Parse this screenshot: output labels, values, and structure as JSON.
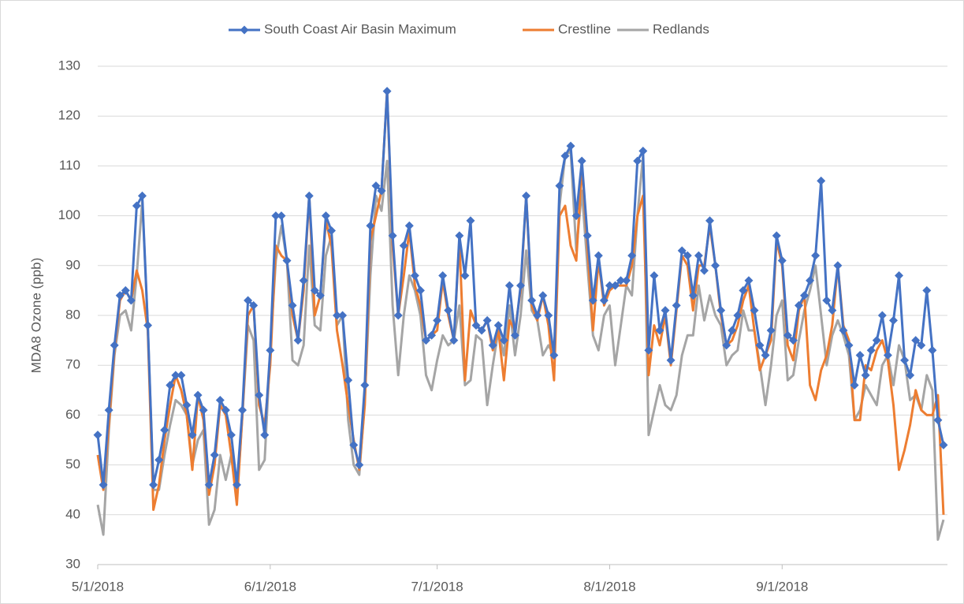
{
  "chart_data": {
    "type": "line",
    "y_label": "MDA8 Ozone (ppb)",
    "legend": "top",
    "grid": true,
    "markers": "diamond",
    "x": [
      "5/1/2018",
      "5/2/2018",
      "5/3/2018",
      "5/4/2018",
      "5/5/2018",
      "5/6/2018",
      "5/7/2018",
      "5/8/2018",
      "5/9/2018",
      "5/10/2018",
      "5/11/2018",
      "5/12/2018",
      "5/13/2018",
      "5/14/2018",
      "5/15/2018",
      "5/16/2018",
      "5/17/2018",
      "5/18/2018",
      "5/19/2018",
      "5/20/2018",
      "5/21/2018",
      "5/22/2018",
      "5/23/2018",
      "5/24/2018",
      "5/25/2018",
      "5/26/2018",
      "5/27/2018",
      "5/28/2018",
      "5/29/2018",
      "5/30/2018",
      "5/31/2018",
      "6/1/2018",
      "6/2/2018",
      "6/3/2018",
      "6/4/2018",
      "6/5/2018",
      "6/6/2018",
      "6/7/2018",
      "6/8/2018",
      "6/9/2018",
      "6/10/2018",
      "6/11/2018",
      "6/12/2018",
      "6/13/2018",
      "6/14/2018",
      "6/15/2018",
      "6/16/2018",
      "6/17/2018",
      "6/18/2018",
      "6/19/2018",
      "6/20/2018",
      "6/21/2018",
      "6/22/2018",
      "6/23/2018",
      "6/24/2018",
      "6/25/2018",
      "6/26/2018",
      "6/27/2018",
      "6/28/2018",
      "6/29/2018",
      "6/30/2018",
      "7/1/2018",
      "7/2/2018",
      "7/3/2018",
      "7/4/2018",
      "7/5/2018",
      "7/6/2018",
      "7/7/2018",
      "7/8/2018",
      "7/9/2018",
      "7/10/2018",
      "7/11/2018",
      "7/12/2018",
      "7/13/2018",
      "7/14/2018",
      "7/15/2018",
      "7/16/2018",
      "7/17/2018",
      "7/18/2018",
      "7/19/2018",
      "7/20/2018",
      "7/21/2018",
      "7/22/2018",
      "7/23/2018",
      "7/24/2018",
      "7/25/2018",
      "7/26/2018",
      "7/27/2018",
      "7/28/2018",
      "7/29/2018",
      "7/30/2018",
      "7/31/2018",
      "8/1/2018",
      "8/2/2018",
      "8/3/2018",
      "8/4/2018",
      "8/5/2018",
      "8/6/2018",
      "8/7/2018",
      "8/8/2018",
      "8/9/2018",
      "8/10/2018",
      "8/11/2018",
      "8/12/2018",
      "8/13/2018",
      "8/14/2018",
      "8/15/2018",
      "8/16/2018",
      "8/17/2018",
      "8/18/2018",
      "8/19/2018",
      "8/20/2018",
      "8/21/2018",
      "8/22/2018",
      "8/23/2018",
      "8/24/2018",
      "8/25/2018",
      "8/26/2018",
      "8/27/2018",
      "8/28/2018",
      "8/29/2018",
      "8/30/2018",
      "8/31/2018",
      "9/1/2018",
      "9/2/2018",
      "9/3/2018",
      "9/4/2018",
      "9/5/2018",
      "9/6/2018",
      "9/7/2018",
      "9/8/2018",
      "9/9/2018",
      "9/10/2018",
      "9/11/2018",
      "9/12/2018",
      "9/13/2018",
      "9/14/2018",
      "9/15/2018",
      "9/16/2018",
      "9/17/2018",
      "9/18/2018",
      "9/19/2018",
      "9/20/2018",
      "9/21/2018",
      "9/22/2018",
      "9/23/2018",
      "9/24/2018",
      "9/25/2018",
      "9/26/2018",
      "9/27/2018",
      "9/28/2018",
      "9/29/2018",
      "9/30/2018"
    ],
    "xlim": [
      "5/1/2018",
      "9/30/2018"
    ],
    "xticks": [
      "5/1/2018",
      "6/1/2018",
      "7/1/2018",
      "8/1/2018",
      "9/1/2018"
    ],
    "ylim": [
      30,
      130
    ],
    "yticks": [
      30,
      40,
      50,
      60,
      70,
      80,
      90,
      100,
      110,
      120,
      130
    ],
    "series": [
      {
        "name": "South Coast Air Basin Maximum",
        "color": "#4472c4",
        "values": [
          56,
          46,
          61,
          74,
          84,
          85,
          83,
          102,
          104,
          78,
          46,
          51,
          57,
          66,
          68,
          68,
          62,
          56,
          64,
          61,
          46,
          52,
          63,
          61,
          56,
          46,
          61,
          83,
          82,
          64,
          56,
          73,
          100,
          100,
          91,
          82,
          75,
          87,
          104,
          85,
          84,
          100,
          97,
          80,
          80,
          67,
          54,
          50,
          66,
          98,
          106,
          105,
          125,
          96,
          80,
          94,
          98,
          88,
          85,
          75,
          76,
          79,
          88,
          81,
          75,
          96,
          88,
          99,
          78,
          77,
          79,
          74,
          78,
          75,
          86,
          76,
          86,
          104,
          83,
          80,
          84,
          80,
          72,
          106,
          112,
          114,
          100,
          111,
          96,
          83,
          92,
          83,
          86,
          86,
          87,
          87,
          92,
          111,
          113,
          73,
          88,
          77,
          81,
          71,
          82,
          93,
          92,
          84,
          92,
          89,
          99,
          90,
          81,
          74,
          77,
          80,
          85,
          87,
          81,
          74,
          72,
          77,
          96,
          91,
          76,
          75,
          82,
          84,
          87,
          92,
          107,
          83,
          81,
          90,
          77,
          74,
          66,
          72,
          68,
          73,
          75,
          80,
          72,
          79,
          88,
          71,
          68,
          75,
          74,
          85,
          73,
          59,
          54
        ]
      },
      {
        "name": "Crestline",
        "color": "#ed7d31",
        "values": [
          52,
          45,
          58,
          73,
          83,
          85,
          83,
          89,
          85,
          77,
          41,
          46,
          55,
          62,
          68,
          65,
          60,
          49,
          64,
          59,
          44,
          50,
          62,
          60,
          52,
          42,
          60,
          80,
          82,
          62,
          58,
          70,
          94,
          92,
          91,
          80,
          75,
          85,
          104,
          80,
          84,
          99,
          94,
          77,
          70,
          62,
          55,
          49,
          62,
          95,
          100,
          105,
          125,
          94,
          80,
          88,
          97,
          86,
          82,
          75,
          76,
          77,
          87,
          80,
          75,
          95,
          67,
          81,
          78,
          77,
          79,
          73,
          77,
          67,
          79,
          77,
          85,
          104,
          82,
          79,
          84,
          78,
          67,
          100,
          102,
          94,
          91,
          110,
          94,
          77,
          91,
          82,
          85,
          86,
          86,
          86,
          90,
          100,
          104,
          68,
          78,
          74,
          80,
          70,
          81,
          92,
          90,
          81,
          90,
          90,
          98,
          90,
          80,
          74,
          75,
          78,
          83,
          86,
          77,
          69,
          72,
          75,
          95,
          90,
          74,
          71,
          81,
          84,
          66,
          63,
          69,
          72,
          78,
          90,
          78,
          75,
          59,
          59,
          70,
          69,
          73,
          75,
          71,
          62,
          49,
          53,
          58,
          65,
          61,
          60,
          60,
          64,
          40
        ]
      },
      {
        "name": "Redlands",
        "color": "#a5a5a5",
        "values": [
          42,
          36,
          57,
          72,
          80,
          81,
          77,
          88,
          103,
          78,
          45,
          45,
          52,
          58,
          63,
          62,
          60,
          50,
          55,
          57,
          38,
          41,
          52,
          47,
          52,
          43,
          60,
          78,
          75,
          49,
          51,
          73,
          91,
          98,
          91,
          71,
          70,
          74,
          94,
          78,
          77,
          92,
          96,
          78,
          80,
          59,
          50,
          48,
          63,
          88,
          104,
          101,
          111,
          82,
          68,
          80,
          88,
          85,
          80,
          68,
          65,
          71,
          76,
          74,
          75,
          82,
          66,
          67,
          76,
          75,
          62,
          70,
          77,
          72,
          82,
          72,
          80,
          93,
          81,
          79,
          72,
          74,
          72,
          102,
          112,
          113,
          93,
          105,
          90,
          76,
          73,
          80,
          82,
          70,
          78,
          86,
          84,
          100,
          112,
          56,
          61,
          66,
          62,
          61,
          64,
          72,
          76,
          76,
          86,
          79,
          84,
          80,
          78,
          70,
          72,
          73,
          81,
          77,
          77,
          70,
          62,
          70,
          80,
          83,
          67,
          68,
          75,
          81,
          85,
          90,
          80,
          70,
          76,
          79,
          76,
          72,
          59,
          61,
          66,
          64,
          62,
          70,
          72,
          66,
          74,
          71,
          63,
          64,
          61,
          68,
          65,
          35,
          39
        ]
      }
    ]
  }
}
